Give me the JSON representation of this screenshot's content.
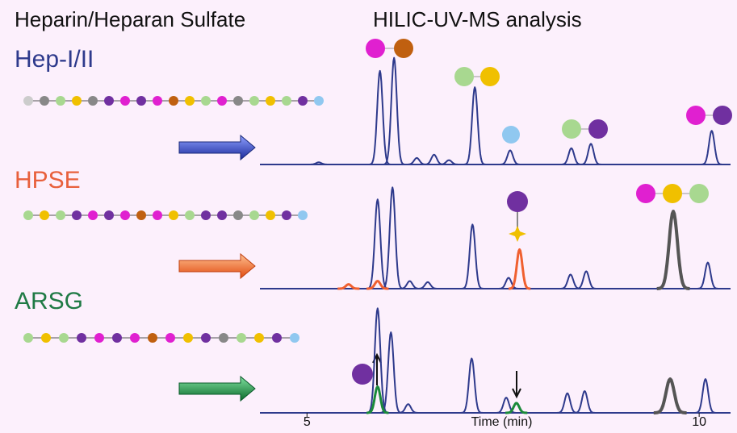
{
  "header": {
    "left": "Heparin/Heparan Sulfate",
    "right": "HILIC-UV-MS analysis"
  },
  "chart_data": [
    {
      "type": "peaks",
      "title": "Hep-I/II",
      "title_color": "#2e3a8c",
      "xlim": [
        4.4,
        10.4
      ],
      "ylim": [
        0,
        100
      ],
      "series": [
        {
          "color": "#2e3a8c",
          "linewidth": 2,
          "x": [
            5.15,
            5.93,
            6.11,
            6.4,
            6.62,
            6.81,
            7.14,
            7.59,
            8.37,
            8.62,
            10.16
          ],
          "values": [
            2,
            86,
            98,
            6,
            9,
            4,
            71,
            13,
            15,
            19,
            31
          ]
        }
      ]
    },
    {
      "type": "peaks",
      "title": "HPSE",
      "title_color": "#e8603c",
      "xlim": [
        4.4,
        10.4
      ],
      "ylim": [
        0,
        100
      ],
      "series": [
        {
          "color": "#2e3a8c",
          "linewidth": 2,
          "x": [
            5.9,
            6.09,
            6.31,
            6.54,
            7.11,
            7.57,
            8.36,
            8.56,
            10.11
          ],
          "values": [
            82,
            93,
            7,
            6,
            59,
            10,
            13,
            16,
            24
          ]
        },
        {
          "color": "#f06030",
          "linewidth": 3,
          "x": [
            5.53,
            5.9,
            7.71
          ],
          "values": [
            4,
            7,
            36
          ]
        },
        {
          "color": "#555555",
          "linewidth": 4,
          "x": [
            9.67
          ],
          "values": [
            71
          ]
        }
      ]
    },
    {
      "type": "peaks",
      "title": "ARSG",
      "title_color": "#1f7a45",
      "xlim": [
        4.4,
        10.4
      ],
      "ylim": [
        0,
        100
      ],
      "xlabel": "Time (min)",
      "xticks": [
        5,
        10
      ],
      "series": [
        {
          "color": "#2e3a8c",
          "linewidth": 2,
          "x": [
            5.9,
            6.07,
            6.29,
            7.1,
            7.54,
            8.32,
            8.54,
            10.08
          ],
          "values": [
            96,
            74,
            8,
            50,
            14,
            18,
            20,
            31
          ]
        },
        {
          "color": "#1a8a3a",
          "linewidth": 3,
          "x": [
            5.9,
            7.67
          ],
          "values": [
            24,
            9
          ]
        },
        {
          "color": "#555555",
          "linewidth": 4,
          "x": [
            9.63
          ],
          "values": [
            31
          ]
        }
      ]
    }
  ]
}
